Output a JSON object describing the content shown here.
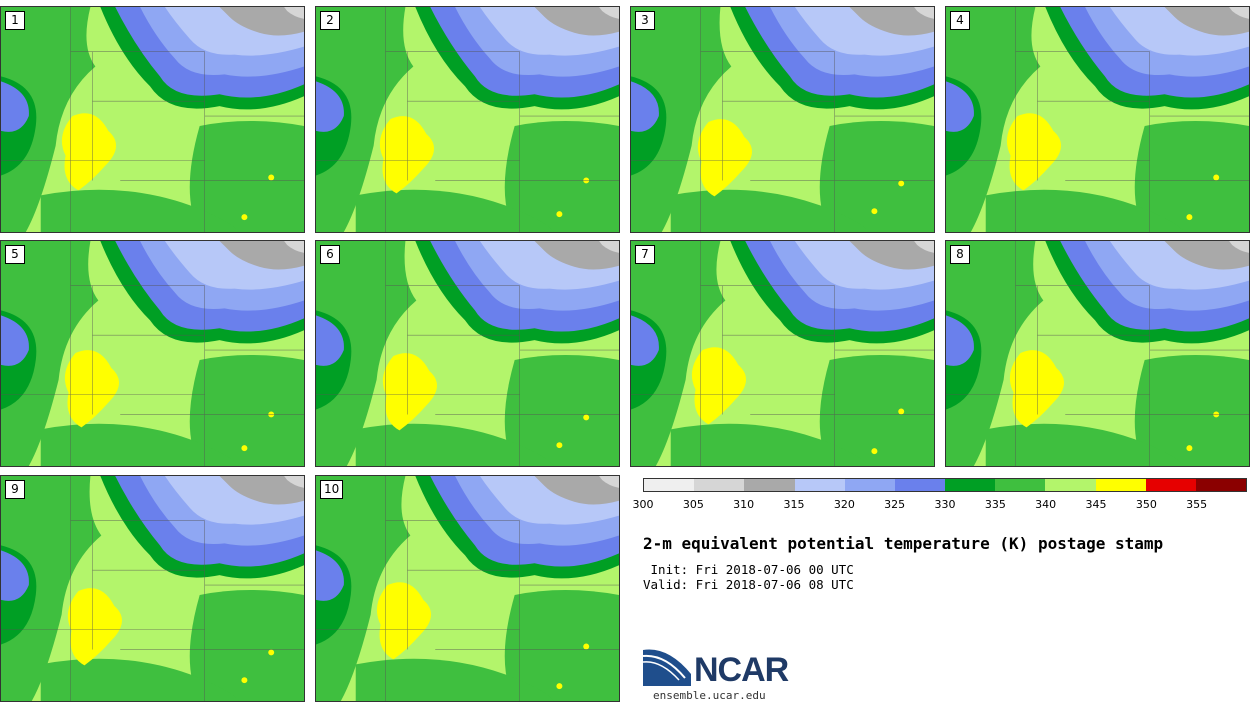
{
  "title": "2-m equivalent potential temperature (K) postage stamp",
  "init": " Init: Fri 2018-07-06 00 UTC",
  "valid": "Valid: Fri 2018-07-06 08 UTC",
  "panels": [
    "1",
    "2",
    "3",
    "4",
    "5",
    "6",
    "7",
    "8",
    "9",
    "10"
  ],
  "colorbar": {
    "colors": [
      "#efefef",
      "#d6d6d6",
      "#a9a9a9",
      "#b7c8f8",
      "#8fa7f3",
      "#6a80ec",
      "#009f24",
      "#3fbf3f",
      "#b3f56b",
      "#ffff00",
      "#e60000",
      "#8b0000"
    ],
    "ticks": [
      "300",
      "305",
      "310",
      "315",
      "320",
      "325",
      "330",
      "335",
      "340",
      "345",
      "350",
      "355"
    ]
  },
  "logo": {
    "name": "NCAR",
    "url": "ensemble.ucar.edu"
  }
}
